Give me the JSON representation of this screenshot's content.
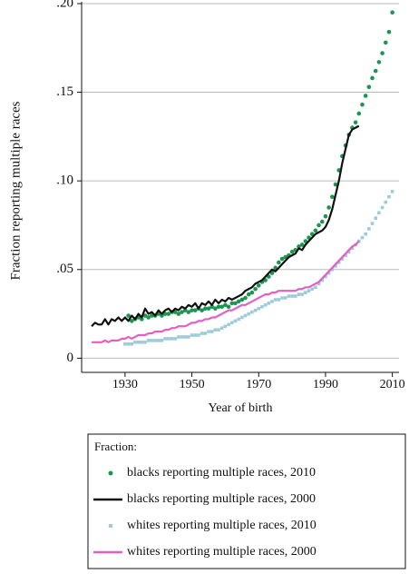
{
  "chart_data": {
    "type": "mixed",
    "xlabel": "Year of birth",
    "ylabel": "Fraction reporting multiple races",
    "legend_title": "Fraction:",
    "xlim": [
      1917,
      2012
    ],
    "ylim": [
      -0.008,
      0.201
    ],
    "xticks": [
      1930,
      1950,
      1970,
      1990,
      2010
    ],
    "yticks": [
      0,
      {
        "value": 0.05,
        "label": ".05"
      },
      {
        "value": 0.1,
        "label": ".10"
      },
      {
        "value": 0.15,
        "label": ".15"
      },
      {
        "value": 0.2,
        "label": ".20"
      }
    ],
    "grid": true,
    "series": [
      {
        "name": "blacks reporting multiple races, 2010",
        "style": "dot",
        "color": "#1a9650",
        "x": [
          1931,
          1932,
          1933,
          1934,
          1935,
          1936,
          1937,
          1938,
          1939,
          1940,
          1941,
          1942,
          1943,
          1944,
          1945,
          1946,
          1947,
          1948,
          1949,
          1950,
          1951,
          1952,
          1953,
          1954,
          1955,
          1956,
          1957,
          1958,
          1959,
          1960,
          1961,
          1962,
          1963,
          1964,
          1965,
          1966,
          1967,
          1968,
          1969,
          1970,
          1971,
          1972,
          1973,
          1974,
          1975,
          1976,
          1977,
          1978,
          1979,
          1980,
          1981,
          1982,
          1983,
          1984,
          1985,
          1986,
          1987,
          1988,
          1989,
          1990,
          1991,
          1992,
          1993,
          1994,
          1995,
          1996,
          1997,
          1998,
          1999,
          2000,
          2001,
          2002,
          2003,
          2004,
          2005,
          2006,
          2007,
          2008,
          2009,
          2010
        ],
        "values": [
          0.024,
          0.021,
          0.022,
          0.023,
          0.022,
          0.024,
          0.023,
          0.024,
          0.024,
          0.025,
          0.024,
          0.025,
          0.025,
          0.026,
          0.026,
          0.025,
          0.026,
          0.027,
          0.026,
          0.027,
          0.027,
          0.028,
          0.027,
          0.028,
          0.028,
          0.029,
          0.028,
          0.029,
          0.029,
          0.03,
          0.029,
          0.031,
          0.031,
          0.032,
          0.033,
          0.034,
          0.036,
          0.037,
          0.039,
          0.041,
          0.043,
          0.044,
          0.046,
          0.048,
          0.051,
          0.054,
          0.056,
          0.057,
          0.058,
          0.06,
          0.061,
          0.063,
          0.064,
          0.066,
          0.068,
          0.07,
          0.072,
          0.075,
          0.077,
          0.08,
          0.085,
          0.091,
          0.098,
          0.106,
          0.114,
          0.12,
          0.126,
          0.13,
          0.133,
          0.138,
          0.143,
          0.148,
          0.153,
          0.158,
          0.162,
          0.167,
          0.172,
          0.178,
          0.184,
          0.195
        ]
      },
      {
        "name": "blacks reporting multiple races, 2000",
        "style": "line",
        "color": "#111111",
        "x": [
          1920,
          1921,
          1922,
          1923,
          1924,
          1925,
          1926,
          1927,
          1928,
          1929,
          1930,
          1931,
          1932,
          1933,
          1934,
          1935,
          1936,
          1937,
          1938,
          1939,
          1940,
          1941,
          1942,
          1943,
          1944,
          1945,
          1946,
          1947,
          1948,
          1949,
          1950,
          1951,
          1952,
          1953,
          1954,
          1955,
          1956,
          1957,
          1958,
          1959,
          1960,
          1961,
          1962,
          1963,
          1964,
          1965,
          1966,
          1967,
          1968,
          1969,
          1970,
          1971,
          1972,
          1973,
          1974,
          1975,
          1976,
          1977,
          1978,
          1979,
          1980,
          1981,
          1982,
          1983,
          1984,
          1985,
          1986,
          1987,
          1988,
          1989,
          1990,
          1991,
          1992,
          1993,
          1994,
          1995,
          1996,
          1997,
          1998,
          1999,
          2000
        ],
        "values": [
          0.018,
          0.02,
          0.019,
          0.019,
          0.022,
          0.019,
          0.022,
          0.021,
          0.023,
          0.021,
          0.023,
          0.021,
          0.024,
          0.022,
          0.025,
          0.023,
          0.028,
          0.025,
          0.026,
          0.024,
          0.027,
          0.025,
          0.027,
          0.028,
          0.026,
          0.028,
          0.027,
          0.029,
          0.028,
          0.03,
          0.029,
          0.031,
          0.028,
          0.031,
          0.03,
          0.032,
          0.03,
          0.033,
          0.031,
          0.033,
          0.032,
          0.034,
          0.033,
          0.034,
          0.035,
          0.036,
          0.038,
          0.039,
          0.04,
          0.042,
          0.043,
          0.044,
          0.046,
          0.048,
          0.05,
          0.049,
          0.051,
          0.053,
          0.055,
          0.057,
          0.058,
          0.059,
          0.062,
          0.061,
          0.064,
          0.066,
          0.068,
          0.07,
          0.071,
          0.072,
          0.074,
          0.078,
          0.084,
          0.092,
          0.1,
          0.11,
          0.118,
          0.126,
          0.129,
          0.13,
          0.131
        ]
      },
      {
        "name": "whites reporting multiple races, 2010",
        "style": "square",
        "color": "#9ecbdb",
        "x": [
          1930,
          1931,
          1932,
          1933,
          1934,
          1935,
          1936,
          1937,
          1938,
          1939,
          1940,
          1941,
          1942,
          1943,
          1944,
          1945,
          1946,
          1947,
          1948,
          1949,
          1950,
          1951,
          1952,
          1953,
          1954,
          1955,
          1956,
          1957,
          1958,
          1959,
          1960,
          1961,
          1962,
          1963,
          1964,
          1965,
          1966,
          1967,
          1968,
          1969,
          1970,
          1971,
          1972,
          1973,
          1974,
          1975,
          1976,
          1977,
          1978,
          1979,
          1980,
          1981,
          1982,
          1983,
          1984,
          1985,
          1986,
          1987,
          1988,
          1989,
          1990,
          1991,
          1992,
          1993,
          1994,
          1995,
          1996,
          1997,
          1998,
          1999,
          2000,
          2001,
          2002,
          2003,
          2004,
          2005,
          2006,
          2007,
          2008,
          2009,
          2010
        ],
        "values": [
          0.008,
          0.008,
          0.008,
          0.009,
          0.009,
          0.009,
          0.009,
          0.01,
          0.01,
          0.01,
          0.01,
          0.01,
          0.011,
          0.011,
          0.011,
          0.011,
          0.012,
          0.012,
          0.012,
          0.012,
          0.013,
          0.013,
          0.013,
          0.014,
          0.014,
          0.015,
          0.015,
          0.016,
          0.016,
          0.017,
          0.018,
          0.019,
          0.02,
          0.021,
          0.022,
          0.023,
          0.024,
          0.025,
          0.026,
          0.027,
          0.028,
          0.029,
          0.03,
          0.031,
          0.032,
          0.033,
          0.033,
          0.034,
          0.034,
          0.035,
          0.035,
          0.035,
          0.036,
          0.036,
          0.037,
          0.038,
          0.039,
          0.04,
          0.042,
          0.044,
          0.046,
          0.048,
          0.05,
          0.052,
          0.054,
          0.056,
          0.058,
          0.06,
          0.062,
          0.064,
          0.066,
          0.068,
          0.07,
          0.073,
          0.076,
          0.079,
          0.082,
          0.085,
          0.088,
          0.091,
          0.094
        ]
      },
      {
        "name": "whites reporting multiple races, 2000",
        "style": "line",
        "color": "#e35fc4",
        "x": [
          1920,
          1921,
          1922,
          1923,
          1924,
          1925,
          1926,
          1927,
          1928,
          1929,
          1930,
          1931,
          1932,
          1933,
          1934,
          1935,
          1936,
          1937,
          1938,
          1939,
          1940,
          1941,
          1942,
          1943,
          1944,
          1945,
          1946,
          1947,
          1948,
          1949,
          1950,
          1951,
          1952,
          1953,
          1954,
          1955,
          1956,
          1957,
          1958,
          1959,
          1960,
          1961,
          1962,
          1963,
          1964,
          1965,
          1966,
          1967,
          1968,
          1969,
          1970,
          1971,
          1972,
          1973,
          1974,
          1975,
          1976,
          1977,
          1978,
          1979,
          1980,
          1981,
          1982,
          1983,
          1984,
          1985,
          1986,
          1987,
          1988,
          1989,
          1990,
          1991,
          1992,
          1993,
          1994,
          1995,
          1996,
          1997,
          1998,
          1999,
          2000
        ],
        "values": [
          0.009,
          0.009,
          0.009,
          0.009,
          0.01,
          0.009,
          0.01,
          0.01,
          0.01,
          0.011,
          0.011,
          0.012,
          0.011,
          0.012,
          0.013,
          0.013,
          0.013,
          0.014,
          0.014,
          0.015,
          0.015,
          0.015,
          0.016,
          0.016,
          0.017,
          0.017,
          0.018,
          0.018,
          0.018,
          0.019,
          0.02,
          0.02,
          0.021,
          0.021,
          0.022,
          0.022,
          0.023,
          0.023,
          0.024,
          0.025,
          0.026,
          0.027,
          0.027,
          0.028,
          0.029,
          0.03,
          0.03,
          0.031,
          0.032,
          0.033,
          0.034,
          0.035,
          0.036,
          0.036,
          0.037,
          0.037,
          0.038,
          0.038,
          0.038,
          0.038,
          0.038,
          0.038,
          0.039,
          0.039,
          0.04,
          0.04,
          0.041,
          0.042,
          0.043,
          0.045,
          0.047,
          0.049,
          0.051,
          0.053,
          0.055,
          0.057,
          0.059,
          0.061,
          0.063,
          0.064,
          0.066
        ]
      }
    ]
  }
}
